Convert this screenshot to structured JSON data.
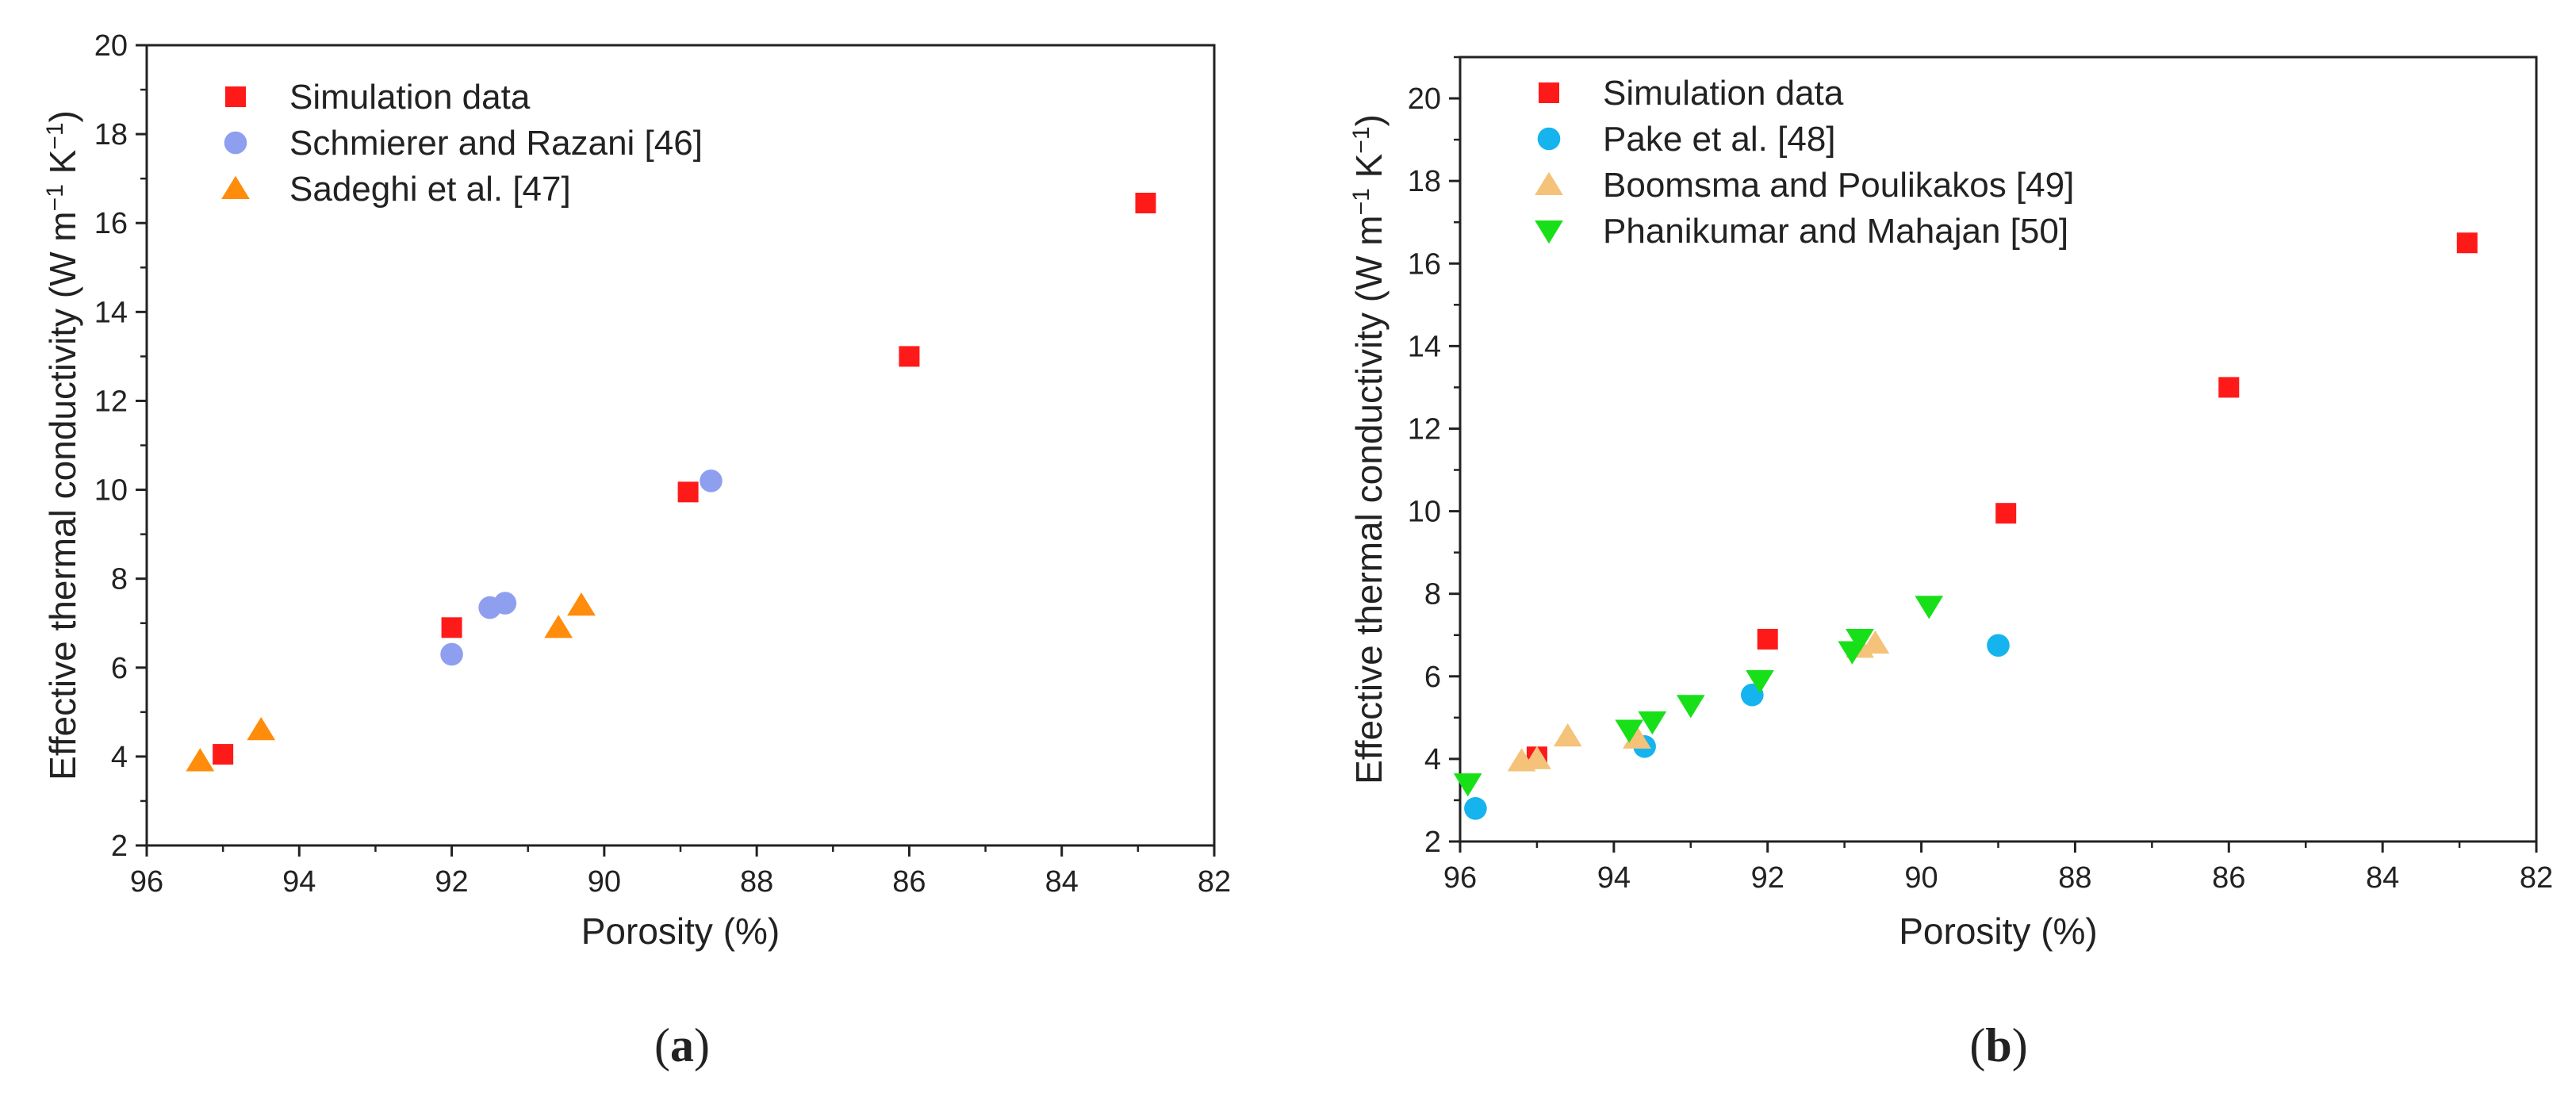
{
  "chart_data": [
    {
      "type": "scatter",
      "panel_label": "a",
      "xlabel": "Porosity (%)",
      "ylabel": "Effective thermal conductivity (W m",
      "ylabel_exp1": "−1",
      "ylabel_mid": " K",
      "ylabel_exp2": "−1",
      "ylabel_end": ")",
      "xlim": [
        96,
        82
      ],
      "ylim": [
        2,
        20
      ],
      "xticks": [
        96,
        94,
        92,
        90,
        88,
        86,
        84,
        82
      ],
      "yticks": [
        2,
        4,
        6,
        8,
        10,
        12,
        14,
        16,
        18,
        20
      ],
      "series": [
        {
          "name": "Simulation data",
          "marker": "square",
          "color": "#ff1a1a",
          "x": [
            95.0,
            92.0,
            88.9,
            86.0,
            82.9
          ],
          "y": [
            4.05,
            6.9,
            9.95,
            13.0,
            16.45
          ]
        },
        {
          "name": "Schmierer and Razani [46]",
          "marker": "circle",
          "color": "#8f9ff0",
          "x": [
            92.0,
            91.5,
            91.3,
            88.6
          ],
          "y": [
            6.3,
            7.35,
            7.45,
            10.2
          ]
        },
        {
          "name": "Sadeghi et al. [47]",
          "marker": "triangle-up",
          "color": "#ff8c0a",
          "x": [
            95.3,
            94.5,
            90.6,
            90.3
          ],
          "y": [
            3.9,
            4.6,
            6.9,
            7.4
          ]
        }
      ]
    },
    {
      "type": "scatter",
      "panel_label": "b",
      "xlabel": "Porosity (%)",
      "ylabel": "Effective thermal conductivity (W m",
      "ylabel_exp1": "−1",
      "ylabel_mid": " K",
      "ylabel_exp2": "−1",
      "ylabel_end": ")",
      "xlim": [
        96,
        82
      ],
      "ylim": [
        2,
        21
      ],
      "xticks": [
        96,
        94,
        92,
        90,
        88,
        86,
        84,
        82
      ],
      "yticks": [
        2,
        4,
        6,
        8,
        10,
        12,
        14,
        16,
        18,
        20
      ],
      "series": [
        {
          "name": "Simulation data",
          "marker": "square",
          "color": "#ff1a1a",
          "x": [
            95.0,
            92.0,
            88.9,
            86.0,
            82.9
          ],
          "y": [
            4.05,
            6.9,
            9.95,
            13.0,
            16.5
          ]
        },
        {
          "name": "Pake et al. [48]",
          "marker": "circle",
          "color": "#16b4ee",
          "x": [
            95.8,
            93.6,
            92.2,
            89.0
          ],
          "y": [
            2.8,
            4.3,
            5.55,
            6.75
          ]
        },
        {
          "name": "Boomsma and Poulikakos [49]",
          "marker": "triangle-up",
          "color": "#f5c27a",
          "x": [
            95.2,
            95.0,
            94.6,
            93.7,
            90.8,
            90.6
          ],
          "y": [
            3.95,
            4.0,
            4.55,
            4.5,
            6.7,
            6.8
          ]
        },
        {
          "name": "Phanikumar and Mahajan [50]",
          "marker": "triangle-down",
          "color": "#18e018",
          "x": [
            95.9,
            93.8,
            93.5,
            93.0,
            92.1,
            90.9,
            90.8,
            89.9
          ],
          "y": [
            3.4,
            4.7,
            4.9,
            5.3,
            5.9,
            6.6,
            6.9,
            7.7
          ]
        }
      ]
    }
  ]
}
